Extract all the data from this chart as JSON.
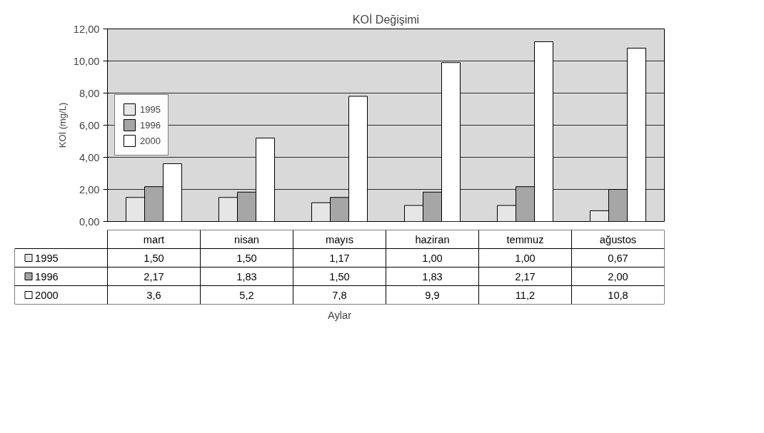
{
  "chart_data": {
    "type": "bar",
    "title": "KOİ Değişimi",
    "annotations": [
      "Aylar"
    ],
    "ylabel": "KOİ (mg/L)",
    "categories": [
      "mart",
      "nisan",
      "mayıs",
      "haziran",
      "temmuz",
      "ağustos"
    ],
    "series": [
      {
        "name": "1995",
        "color": "#e6e6e6",
        "values": [
          1.5,
          1.5,
          1.17,
          1.0,
          1.0,
          0.67
        ],
        "value_labels": [
          "1,50",
          "1,50",
          "1,17",
          "1,00",
          "1,00",
          "0,67"
        ]
      },
      {
        "name": "1996",
        "color": "#a6a6a6",
        "values": [
          2.17,
          1.83,
          1.5,
          1.83,
          2.17,
          2.0
        ],
        "value_labels": [
          "2,17",
          "1,83",
          "1,50",
          "1,83",
          "2,17",
          "2,00"
        ]
      },
      {
        "name": "2000",
        "color": "#ffffff",
        "values": [
          3.6,
          5.2,
          7.8,
          9.9,
          11.2,
          10.8
        ],
        "value_labels": [
          "3,6",
          "5,2",
          "7,8",
          "9,9",
          "11,2",
          "10,8"
        ]
      }
    ],
    "ylim": [
      0,
      12
    ],
    "yticks": [
      {
        "value": 0,
        "label": "0,00"
      },
      {
        "value": 2,
        "label": "2,00"
      },
      {
        "value": 4,
        "label": "4,00"
      },
      {
        "value": 6,
        "label": "6,00"
      },
      {
        "value": 8,
        "label": "8,00"
      },
      {
        "value": 10,
        "label": "10,00"
      },
      {
        "value": 12,
        "label": "12,00"
      }
    ],
    "grid": "y",
    "legend": "left"
  }
}
